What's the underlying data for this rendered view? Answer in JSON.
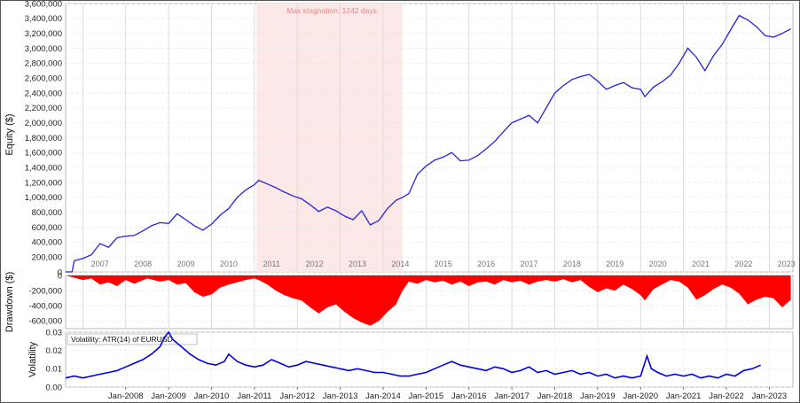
{
  "chart_data": [
    {
      "type": "line",
      "panel": "equity",
      "ylabel": "Equity ($)",
      "ylim": [
        0,
        3600000
      ],
      "yticks": [
        "0",
        "200,000",
        "400,000",
        "600,000",
        "800,000",
        "1,000,000",
        "1,200,000",
        "1,400,000",
        "1,600,000",
        "1,800,000",
        "2,000,000",
        "2,200,000",
        "2,400,000",
        "2,600,000",
        "2,800,000",
        "3,000,000",
        "3,200,000",
        "3,400,000",
        "3,600,000"
      ],
      "xlim": [
        2006.6,
        2023.55
      ],
      "year_labels": [
        "2007",
        "2008",
        "2009",
        "2010",
        "2011",
        "2012",
        "2013",
        "2014",
        "2015",
        "2016",
        "2017",
        "2018",
        "2019",
        "2020",
        "2021",
        "2022",
        "2023"
      ],
      "annotation": "Max stagnation: 1242 days",
      "stagnation_span": [
        2011.05,
        2014.45
      ],
      "shade_color": "#fde8e8",
      "line_color": "#2323dc",
      "series": [
        {
          "x": [
            2006.6,
            2006.75,
            2006.8,
            2007.0,
            2007.2,
            2007.4,
            2007.6,
            2007.8,
            2008.0,
            2008.2,
            2008.4,
            2008.6,
            2008.8,
            2009.0,
            2009.2,
            2009.4,
            2009.6,
            2009.8,
            2010.0,
            2010.2,
            2010.4,
            2010.6,
            2010.8,
            2011.0,
            2011.1,
            2011.3,
            2011.5,
            2011.7,
            2011.9,
            2012.1,
            2012.3,
            2012.5,
            2012.7,
            2012.9,
            2013.1,
            2013.3,
            2013.5,
            2013.7,
            2013.9,
            2014.1,
            2014.3,
            2014.45,
            2014.6,
            2014.8,
            2015.0,
            2015.2,
            2015.4,
            2015.6,
            2015.8,
            2016.0,
            2016.2,
            2016.4,
            2016.6,
            2016.8,
            2017.0,
            2017.2,
            2017.4,
            2017.6,
            2017.8,
            2018.0,
            2018.2,
            2018.4,
            2018.6,
            2018.8,
            2019.0,
            2019.2,
            2019.4,
            2019.6,
            2019.8,
            2020.0,
            2020.1,
            2020.3,
            2020.5,
            2020.7,
            2020.9,
            2021.1,
            2021.3,
            2021.5,
            2021.7,
            2021.9,
            2022.1,
            2022.3,
            2022.5,
            2022.7,
            2022.9,
            2023.1,
            2023.3,
            2023.5
          ],
          "y": [
            0,
            0,
            150000,
            180000,
            230000,
            380000,
            330000,
            460000,
            480000,
            490000,
            550000,
            620000,
            660000,
            650000,
            780000,
            700000,
            620000,
            560000,
            640000,
            760000,
            850000,
            1000000,
            1100000,
            1170000,
            1230000,
            1180000,
            1130000,
            1070000,
            1020000,
            980000,
            900000,
            810000,
            870000,
            820000,
            750000,
            700000,
            820000,
            630000,
            690000,
            850000,
            960000,
            1000000,
            1050000,
            1310000,
            1420000,
            1500000,
            1540000,
            1600000,
            1490000,
            1500000,
            1560000,
            1650000,
            1750000,
            1880000,
            2000000,
            2050000,
            2100000,
            2000000,
            2200000,
            2400000,
            2500000,
            2580000,
            2620000,
            2650000,
            2560000,
            2450000,
            2500000,
            2540000,
            2470000,
            2450000,
            2350000,
            2480000,
            2550000,
            2640000,
            2800000,
            3000000,
            2880000,
            2700000,
            2900000,
            3050000,
            3250000,
            3440000,
            3380000,
            3290000,
            3170000,
            3150000,
            3200000,
            3260000
          ]
        }
      ]
    },
    {
      "type": "area",
      "panel": "drawdown",
      "ylabel": "Drawdown ($)",
      "ylim": [
        -700000,
        0
      ],
      "yticks": [
        "0",
        "-200,000",
        "-400,000",
        "-600,000"
      ],
      "fill_color": "#ff0000",
      "series": [
        {
          "x": [
            2006.6,
            2007.0,
            2007.2,
            2007.4,
            2007.6,
            2007.8,
            2008.0,
            2008.2,
            2008.5,
            2008.8,
            2009.0,
            2009.2,
            2009.4,
            2009.6,
            2009.8,
            2010.0,
            2010.2,
            2010.4,
            2010.6,
            2010.8,
            2011.0,
            2011.1,
            2011.3,
            2011.5,
            2011.7,
            2011.9,
            2012.1,
            2012.3,
            2012.5,
            2012.7,
            2012.9,
            2013.1,
            2013.3,
            2013.5,
            2013.7,
            2013.9,
            2014.1,
            2014.3,
            2014.45,
            2014.6,
            2014.8,
            2015.0,
            2015.2,
            2015.4,
            2015.6,
            2015.8,
            2016.0,
            2016.2,
            2016.4,
            2016.6,
            2016.8,
            2017.0,
            2017.2,
            2017.4,
            2017.6,
            2017.8,
            2018.0,
            2018.2,
            2018.4,
            2018.6,
            2018.8,
            2019.0,
            2019.2,
            2019.4,
            2019.6,
            2019.8,
            2020.0,
            2020.1,
            2020.3,
            2020.5,
            2020.7,
            2020.9,
            2021.1,
            2021.3,
            2021.5,
            2021.7,
            2021.9,
            2022.1,
            2022.3,
            2022.5,
            2022.7,
            2022.9,
            2023.1,
            2023.3,
            2023.5
          ],
          "y": [
            0,
            -60000,
            -40000,
            -120000,
            -90000,
            -140000,
            -60000,
            -110000,
            -40000,
            -80000,
            -60000,
            -120000,
            -100000,
            -220000,
            -280000,
            -250000,
            -160000,
            -120000,
            -90000,
            -60000,
            -40000,
            -60000,
            -120000,
            -200000,
            -260000,
            -300000,
            -330000,
            -420000,
            -500000,
            -420000,
            -380000,
            -480000,
            -560000,
            -620000,
            -660000,
            -600000,
            -480000,
            -380000,
            -200000,
            -80000,
            -110000,
            -60000,
            -90000,
            -70000,
            -120000,
            -80000,
            -140000,
            -90000,
            -80000,
            -120000,
            -60000,
            -90000,
            -70000,
            -120000,
            -80000,
            -60000,
            -80000,
            -50000,
            -90000,
            -60000,
            -150000,
            -220000,
            -170000,
            -200000,
            -120000,
            -180000,
            -260000,
            -330000,
            -180000,
            -120000,
            -60000,
            -80000,
            -160000,
            -320000,
            -260000,
            -180000,
            -120000,
            -160000,
            -240000,
            -380000,
            -320000,
            -280000,
            -300000,
            -420000,
            -320000
          ]
        }
      ]
    },
    {
      "type": "line",
      "panel": "volatility",
      "title": "Volatility: ATR(14) of EURUSD",
      "ylabel": "Volatility",
      "ylim": [
        0,
        0.03
      ],
      "yticks": [
        "0.00",
        "0.01",
        "0.02",
        "0.03"
      ],
      "x_ticklabels": [
        "Jan-2008",
        "Jan-2009",
        "Jan-2010",
        "Jan-2011",
        "Jan-2012",
        "Jan-2013",
        "Jan-2014",
        "Jan-2015",
        "Jan-2016",
        "Jan-2017",
        "Jan-2018",
        "Jan-2019",
        "Jan-2020",
        "Jan-2021",
        "Jan-2022",
        "Jan-2023"
      ],
      "line_color": "#0000e6",
      "series": [
        {
          "x": [
            2006.6,
            2006.8,
            2007.0,
            2007.2,
            2007.4,
            2007.6,
            2007.8,
            2008.0,
            2008.2,
            2008.4,
            2008.6,
            2008.8,
            2008.9,
            2009.0,
            2009.1,
            2009.3,
            2009.5,
            2009.7,
            2009.9,
            2010.1,
            2010.3,
            2010.4,
            2010.6,
            2010.8,
            2011.0,
            2011.2,
            2011.4,
            2011.6,
            2011.8,
            2012.0,
            2012.2,
            2012.4,
            2012.6,
            2012.8,
            2013.0,
            2013.2,
            2013.4,
            2013.6,
            2013.8,
            2014.0,
            2014.2,
            2014.4,
            2014.6,
            2014.8,
            2015.0,
            2015.2,
            2015.4,
            2015.6,
            2015.8,
            2016.0,
            2016.2,
            2016.4,
            2016.6,
            2016.8,
            2017.0,
            2017.2,
            2017.4,
            2017.6,
            2017.8,
            2018.0,
            2018.2,
            2018.4,
            2018.6,
            2018.8,
            2019.0,
            2019.2,
            2019.4,
            2019.6,
            2019.8,
            2020.0,
            2020.15,
            2020.25,
            2020.4,
            2020.6,
            2020.8,
            2021.0,
            2021.2,
            2021.4,
            2021.6,
            2021.8,
            2022.0,
            2022.2,
            2022.4,
            2022.6,
            2022.8
          ],
          "y": [
            0.005,
            0.006,
            0.005,
            0.006,
            0.007,
            0.008,
            0.009,
            0.011,
            0.013,
            0.015,
            0.018,
            0.022,
            0.027,
            0.03,
            0.026,
            0.022,
            0.018,
            0.015,
            0.013,
            0.012,
            0.014,
            0.018,
            0.014,
            0.012,
            0.011,
            0.012,
            0.015,
            0.013,
            0.011,
            0.012,
            0.014,
            0.013,
            0.012,
            0.011,
            0.01,
            0.009,
            0.01,
            0.009,
            0.008,
            0.008,
            0.007,
            0.006,
            0.006,
            0.007,
            0.008,
            0.01,
            0.012,
            0.014,
            0.012,
            0.011,
            0.01,
            0.009,
            0.011,
            0.01,
            0.008,
            0.009,
            0.011,
            0.008,
            0.009,
            0.007,
            0.008,
            0.009,
            0.007,
            0.008,
            0.006,
            0.007,
            0.005,
            0.006,
            0.005,
            0.006,
            0.017,
            0.01,
            0.008,
            0.006,
            0.007,
            0.006,
            0.007,
            0.005,
            0.006,
            0.005,
            0.007,
            0.006,
            0.009,
            0.01,
            0.012
          ]
        }
      ]
    }
  ]
}
